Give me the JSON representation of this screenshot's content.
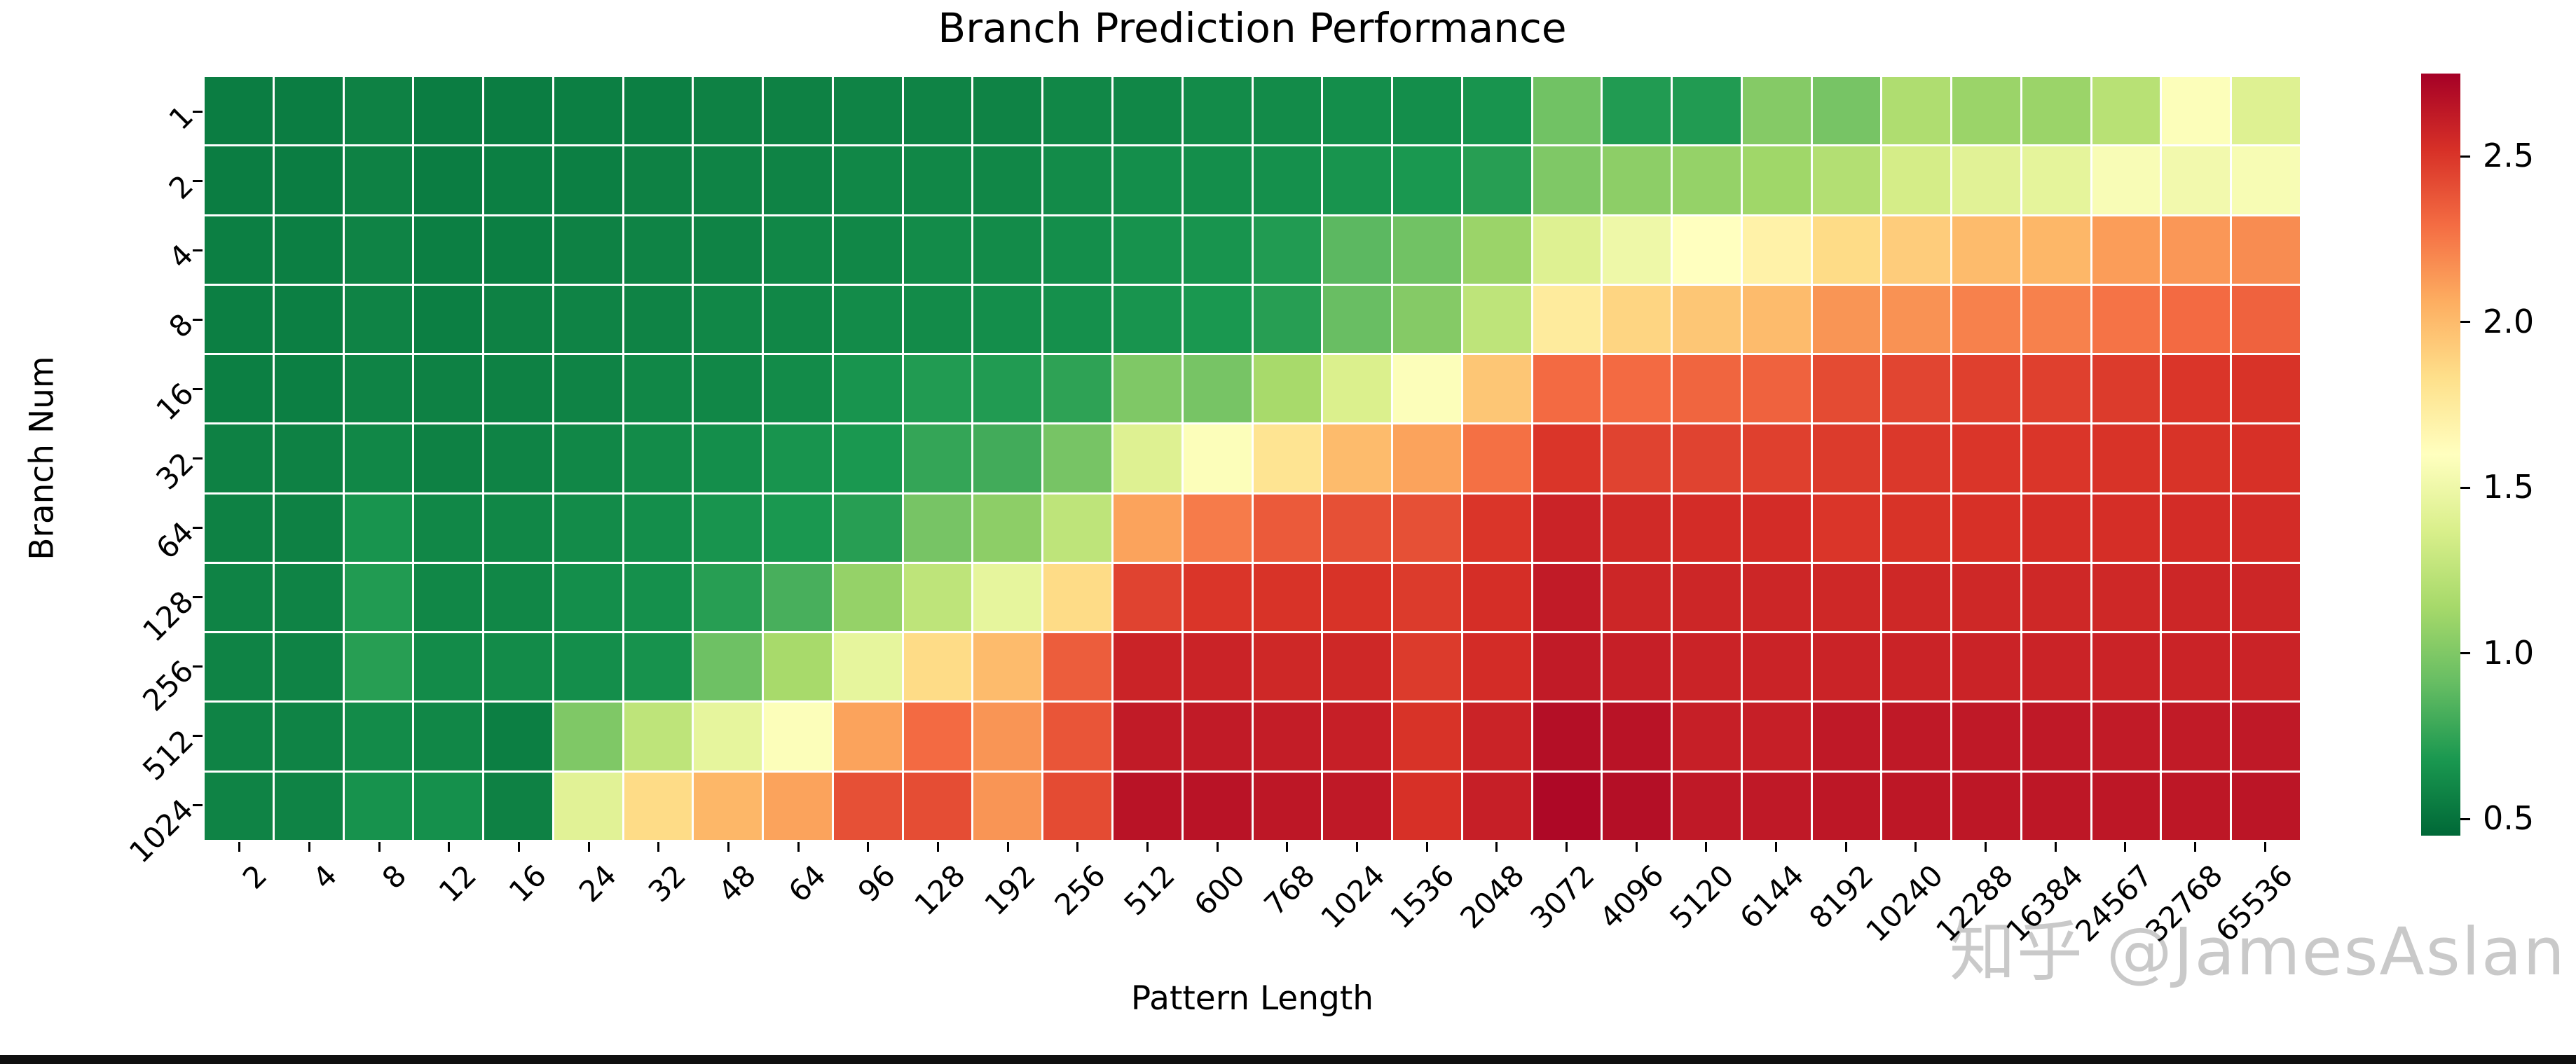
{
  "title": "Branch Prediction Performance",
  "watermark": "知乎 @JamesAslan",
  "colors": {
    "background": "#ffffff",
    "text": "#000000",
    "tick": "#000000",
    "cell_gap": "#ffffff",
    "watermark": "#c9c9c9",
    "bottom_bar": "#101010"
  },
  "chart_data": {
    "type": "heatmap",
    "title": "Branch Prediction Performance",
    "xlabel": "Pattern Length",
    "ylabel": "Branch Num",
    "x_categories": [
      "2",
      "4",
      "8",
      "12",
      "16",
      "24",
      "32",
      "48",
      "64",
      "96",
      "128",
      "192",
      "256",
      "512",
      "600",
      "768",
      "1024",
      "1536",
      "2048",
      "3072",
      "4096",
      "5120",
      "6144",
      "8192",
      "10240",
      "12288",
      "16384",
      "24567",
      "32768",
      "65536"
    ],
    "y_categories": [
      "1",
      "2",
      "4",
      "8",
      "16",
      "32",
      "64",
      "128",
      "256",
      "512",
      "1024"
    ],
    "values": [
      [
        0.55,
        0.55,
        0.57,
        0.55,
        0.55,
        0.56,
        0.56,
        0.57,
        0.57,
        0.58,
        0.58,
        0.58,
        0.6,
        0.6,
        0.62,
        0.62,
        0.63,
        0.63,
        0.66,
        0.95,
        0.7,
        0.7,
        1.02,
        0.97,
        1.18,
        1.1,
        1.1,
        1.22,
        1.58,
        1.4
      ],
      [
        0.55,
        0.55,
        0.57,
        0.55,
        0.56,
        0.56,
        0.57,
        0.58,
        0.58,
        0.6,
        0.6,
        0.6,
        0.62,
        0.63,
        0.63,
        0.64,
        0.66,
        0.68,
        0.72,
        1.0,
        1.05,
        1.08,
        1.12,
        1.2,
        1.35,
        1.42,
        1.44,
        1.56,
        1.52,
        1.55
      ],
      [
        0.56,
        0.56,
        0.58,
        0.56,
        0.56,
        0.57,
        0.58,
        0.58,
        0.6,
        0.6,
        0.62,
        0.62,
        0.63,
        0.65,
        0.66,
        0.7,
        0.88,
        0.95,
        1.1,
        1.4,
        1.5,
        1.6,
        1.7,
        1.85,
        1.92,
        2.0,
        2.02,
        2.12,
        2.14,
        2.18
      ],
      [
        0.56,
        0.56,
        0.58,
        0.56,
        0.57,
        0.58,
        0.58,
        0.6,
        0.6,
        0.62,
        0.62,
        0.63,
        0.64,
        0.66,
        0.68,
        0.72,
        0.92,
        1.02,
        1.25,
        1.75,
        1.88,
        1.95,
        2.0,
        2.15,
        2.16,
        2.22,
        2.22,
        2.27,
        2.3,
        2.33
      ],
      [
        0.56,
        0.56,
        0.58,
        0.57,
        0.57,
        0.58,
        0.6,
        0.6,
        0.62,
        0.66,
        0.7,
        0.7,
        0.74,
        1.0,
        0.97,
        1.15,
        1.38,
        1.58,
        1.95,
        2.3,
        2.3,
        2.32,
        2.33,
        2.42,
        2.44,
        2.46,
        2.46,
        2.48,
        2.5,
        2.51
      ],
      [
        0.57,
        0.57,
        0.6,
        0.57,
        0.58,
        0.6,
        0.62,
        0.63,
        0.66,
        0.68,
        0.76,
        0.8,
        0.97,
        1.4,
        1.58,
        1.8,
        2.0,
        2.1,
        2.28,
        2.5,
        2.45,
        2.45,
        2.46,
        2.48,
        2.49,
        2.5,
        2.5,
        2.51,
        2.51,
        2.52
      ],
      [
        0.57,
        0.57,
        0.66,
        0.6,
        0.6,
        0.62,
        0.63,
        0.66,
        0.68,
        0.72,
        0.97,
        1.05,
        1.25,
        2.1,
        2.24,
        2.36,
        2.4,
        2.4,
        2.5,
        2.58,
        2.55,
        2.54,
        2.54,
        2.5,
        2.51,
        2.52,
        2.53,
        2.53,
        2.54,
        2.54
      ],
      [
        0.58,
        0.58,
        0.7,
        0.6,
        0.6,
        0.63,
        0.64,
        0.72,
        0.82,
        1.08,
        1.25,
        1.45,
        1.85,
        2.45,
        2.5,
        2.51,
        2.51,
        2.48,
        2.53,
        2.62,
        2.57,
        2.57,
        2.57,
        2.56,
        2.56,
        2.56,
        2.56,
        2.56,
        2.57,
        2.57
      ],
      [
        0.58,
        0.58,
        0.72,
        0.62,
        0.62,
        0.63,
        0.65,
        0.94,
        1.15,
        1.45,
        1.85,
        2.0,
        2.35,
        2.58,
        2.58,
        2.56,
        2.56,
        2.48,
        2.54,
        2.62,
        2.6,
        2.58,
        2.58,
        2.58,
        2.58,
        2.58,
        2.58,
        2.58,
        2.58,
        2.58
      ],
      [
        0.58,
        0.58,
        0.62,
        0.6,
        0.56,
        1.0,
        1.25,
        1.45,
        1.58,
        2.1,
        2.3,
        2.15,
        2.38,
        2.62,
        2.62,
        2.61,
        2.6,
        2.51,
        2.58,
        2.68,
        2.66,
        2.6,
        2.6,
        2.63,
        2.63,
        2.63,
        2.63,
        2.62,
        2.62,
        2.63
      ],
      [
        0.58,
        0.58,
        0.65,
        0.64,
        0.57,
        1.42,
        1.85,
        2.02,
        2.1,
        2.4,
        2.41,
        2.15,
        2.42,
        2.66,
        2.66,
        2.64,
        2.63,
        2.52,
        2.6,
        2.71,
        2.68,
        2.63,
        2.63,
        2.64,
        2.64,
        2.64,
        2.64,
        2.64,
        2.64,
        2.65
      ]
    ],
    "vmin": 0.45,
    "vmax": 2.75,
    "colormap_name": "RdYlGn_r",
    "colormap_stops_low_to_high": [
      "#006837",
      "#1a9850",
      "#66bd63",
      "#a6d96a",
      "#d9ef8b",
      "#ffffbf",
      "#fee08b",
      "#fdae61",
      "#f46d43",
      "#d73027",
      "#a50026"
    ],
    "colorbar_ticks": [
      "2.5",
      "2.0",
      "1.5",
      "1.0",
      "0.5"
    ],
    "colorbar_tick_values": [
      2.5,
      2.0,
      1.5,
      1.0,
      0.5
    ],
    "legend_position": "right",
    "grid": "white cell separators, no frame"
  }
}
